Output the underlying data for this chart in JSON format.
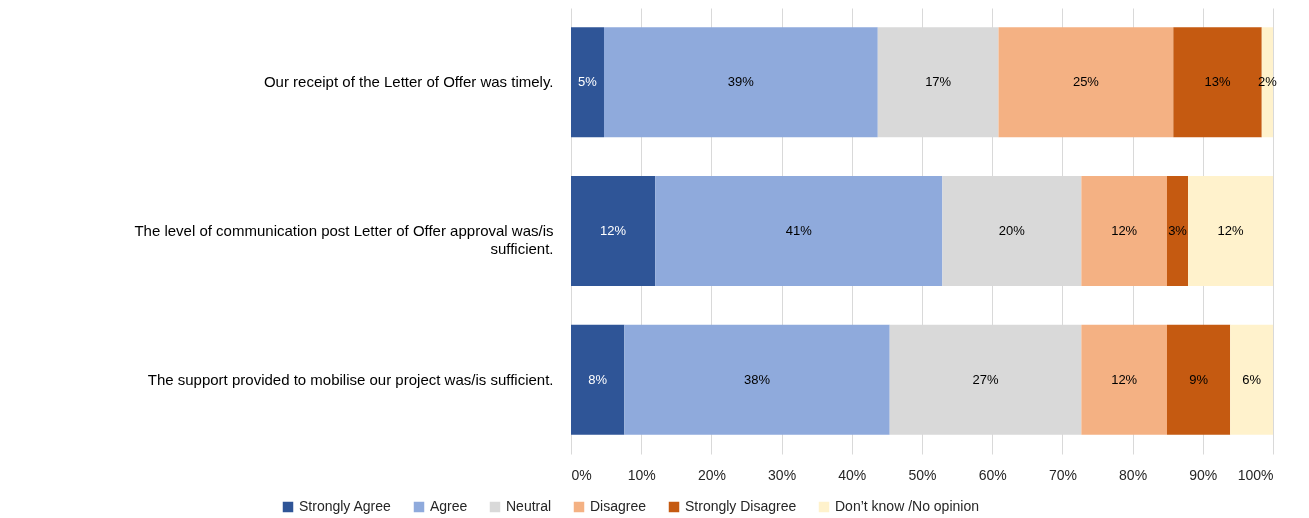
{
  "chart_data": {
    "type": "bar",
    "orientation": "horizontal",
    "stacked": true,
    "categories": [
      "Our receipt of the Letter of Offer was timely.",
      "The level of communication post Letter of Offer approval was/is sufficient.",
      "The support provided to mobilise our project was/is sufficient."
    ],
    "series": [
      {
        "name": "Strongly Agree",
        "color": "#2f5597",
        "values": [
          4.7,
          12.0,
          7.6
        ],
        "value_labels": [
          "5%",
          "12%",
          "8%"
        ]
      },
      {
        "name": "Agree",
        "color": "#8faadc",
        "values": [
          39.0,
          40.9,
          37.8
        ],
        "value_labels": [
          "39%",
          "41%",
          "38%"
        ]
      },
      {
        "name": "Neutral",
        "color": "#d9d9d9",
        "values": [
          17.2,
          19.8,
          27.3
        ],
        "value_labels": [
          "17%",
          "20%",
          "27%"
        ]
      },
      {
        "name": "Disagree",
        "color": "#f4b183",
        "values": [
          24.9,
          12.2,
          12.2
        ],
        "value_labels": [
          "25%",
          "12%",
          "12%"
        ]
      },
      {
        "name": "Strongly Disagree",
        "color": "#c55a11",
        "values": [
          12.6,
          3.0,
          9.0
        ],
        "value_labels": [
          "13%",
          "3%",
          "9%"
        ]
      },
      {
        "name": "Don’t know /No opinion",
        "color": "#fff2cc",
        "values": [
          1.6,
          12.1,
          6.1
        ],
        "value_labels": [
          "2%",
          "12%",
          "6%"
        ]
      }
    ],
    "xlim": [
      0,
      100
    ],
    "xticks": [
      {
        "value": 0,
        "label": "0%"
      },
      {
        "value": 10,
        "label": "10%"
      },
      {
        "value": 20,
        "label": "20%"
      },
      {
        "value": 30,
        "label": "30%"
      },
      {
        "value": 40,
        "label": "40%"
      },
      {
        "value": 50,
        "label": "50%"
      },
      {
        "value": 60,
        "label": "60%"
      },
      {
        "value": 70,
        "label": "70%"
      },
      {
        "value": 80,
        "label": "80%"
      },
      {
        "value": 90,
        "label": "90%"
      },
      {
        "value": 100,
        "label": "100%"
      }
    ],
    "grid": "x",
    "legend": "bottom"
  }
}
